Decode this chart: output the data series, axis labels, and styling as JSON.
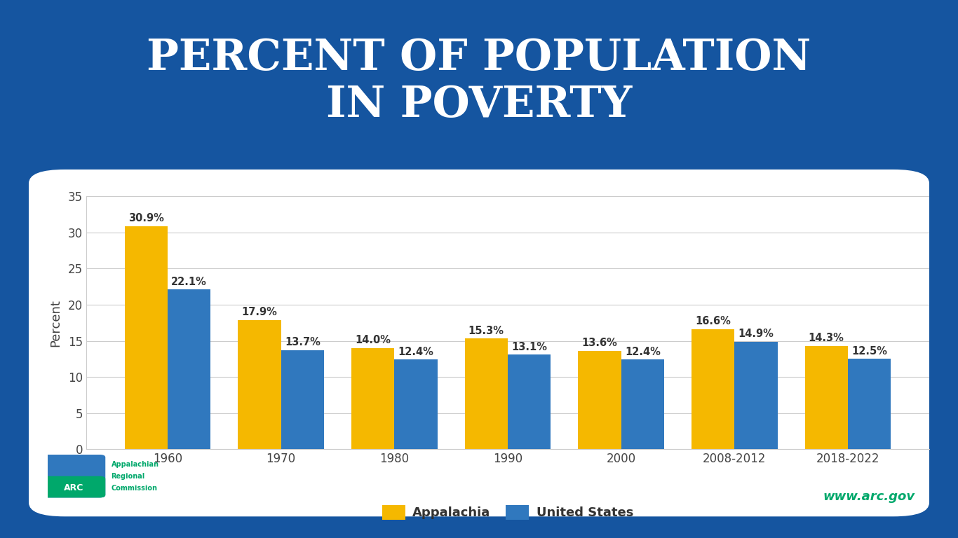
{
  "title_line1": "PERCENT OF POPULATION",
  "title_line2": "IN POVERTY",
  "categories": [
    "1960",
    "1970",
    "1980",
    "1990",
    "2000",
    "2008-2012",
    "2018-2022"
  ],
  "appalachia": [
    30.9,
    17.9,
    14.0,
    15.3,
    13.6,
    16.6,
    14.3
  ],
  "us": [
    22.1,
    13.7,
    12.4,
    13.1,
    12.4,
    14.9,
    12.5
  ],
  "appalachia_color": "#F5B800",
  "us_color": "#3078BE",
  "title_bg_color": "#1555A0",
  "chart_bg_color": "#FFFFFF",
  "outer_bg_color": "#1555A0",
  "ylabel": "Percent",
  "ylim": [
    0,
    35
  ],
  "yticks": [
    0,
    5,
    10,
    15,
    20,
    25,
    30,
    35
  ],
  "grid_color": "#CCCCCC",
  "bar_width": 0.38,
  "axis_fontsize": 12,
  "title_fontsize": 44,
  "legend_fontsize": 13,
  "annotation_fontsize": 10.5,
  "ylabel_fontsize": 13,
  "website_text": "www.arc.gov",
  "website_color": "#00A86B",
  "legend_appalachia": "Appalachia",
  "legend_us": "United States"
}
